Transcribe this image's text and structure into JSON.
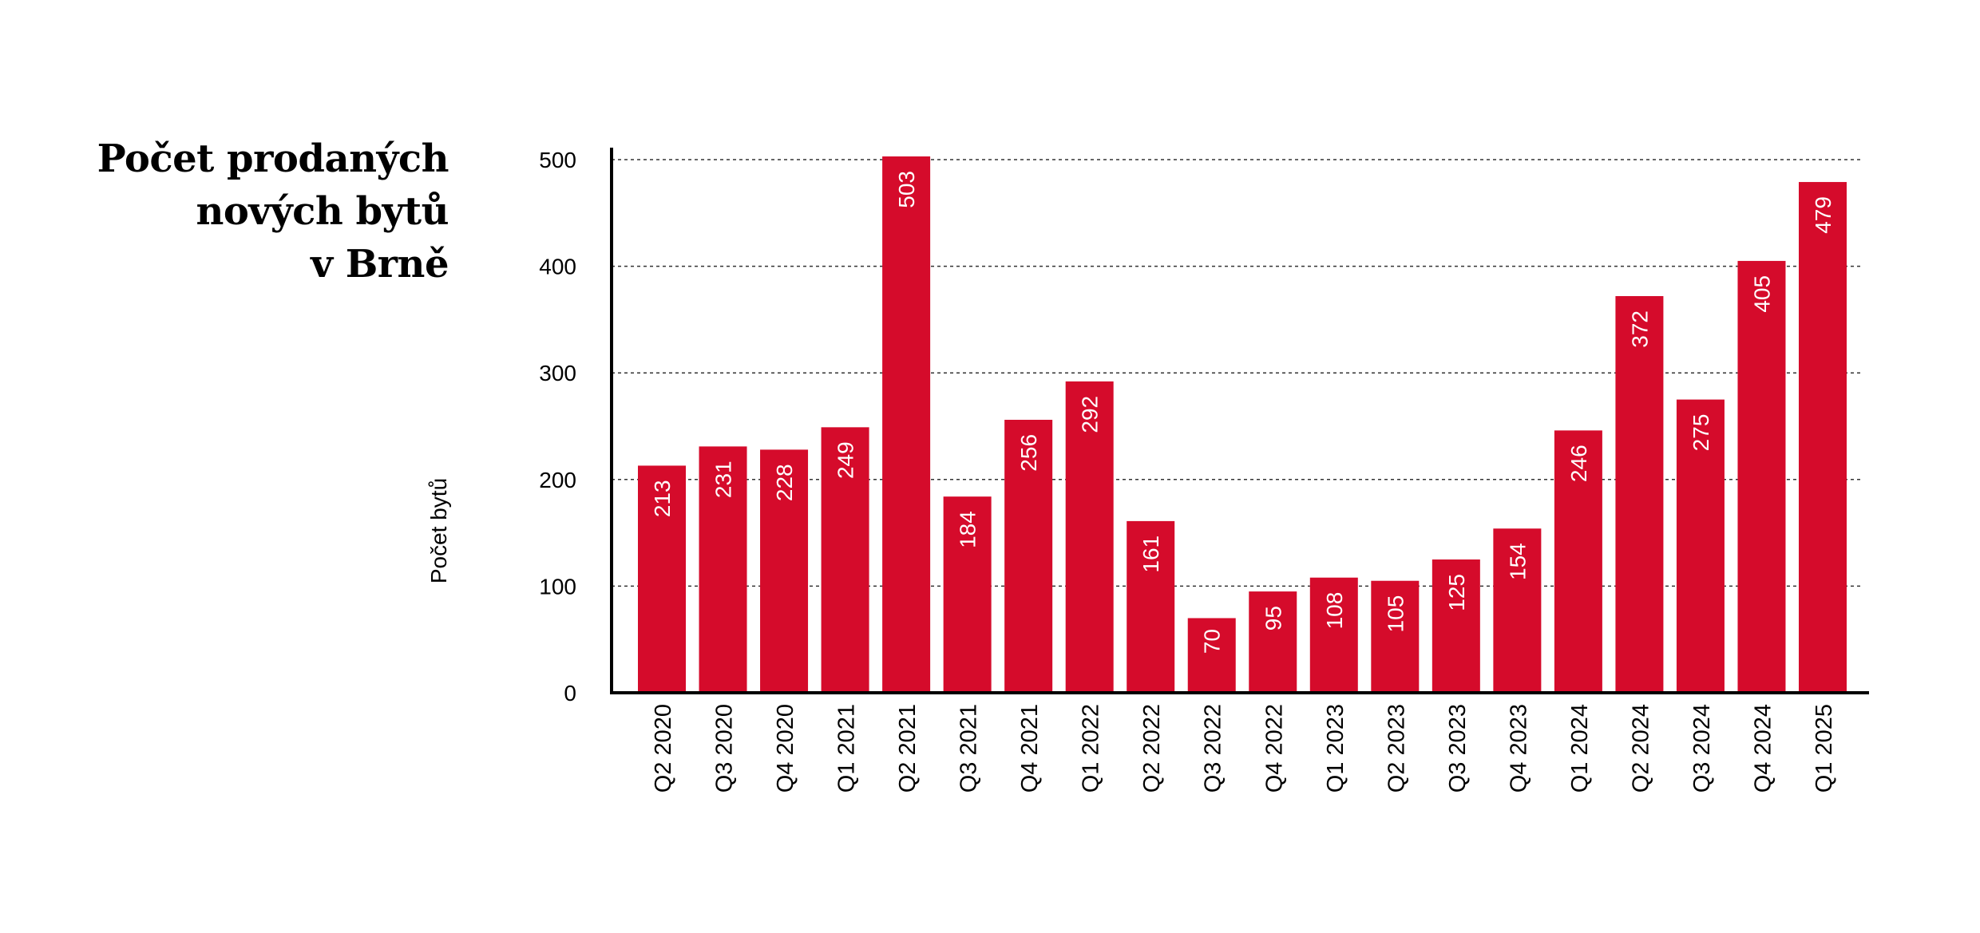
{
  "title_lines": [
    "Počet prodaných",
    "nových bytů",
    "v Brně"
  ],
  "chart_data": {
    "type": "bar",
    "title": "Počet prodaných nových bytů v Brně",
    "ylabel": "Počet bytů",
    "xlabel": "",
    "ylim": [
      0,
      500
    ],
    "yticks": [
      0,
      100,
      200,
      300,
      400,
      500
    ],
    "grid": true,
    "bar_color": "#d50b2b",
    "categories": [
      "Q2 2020",
      "Q3 2020",
      "Q4 2020",
      "Q1 2021",
      "Q2 2021",
      "Q3 2021",
      "Q4 2021",
      "Q1 2022",
      "Q2 2022",
      "Q3 2022",
      "Q4 2022",
      "Q1 2023",
      "Q2 2023",
      "Q3 2023",
      "Q4 2023",
      "Q1 2024",
      "Q2 2024",
      "Q3 2024",
      "Q4 2024",
      "Q1 2025"
    ],
    "values": [
      213,
      231,
      228,
      249,
      503,
      184,
      256,
      292,
      161,
      70,
      95,
      108,
      105,
      125,
      154,
      246,
      372,
      275,
      405,
      479
    ]
  }
}
